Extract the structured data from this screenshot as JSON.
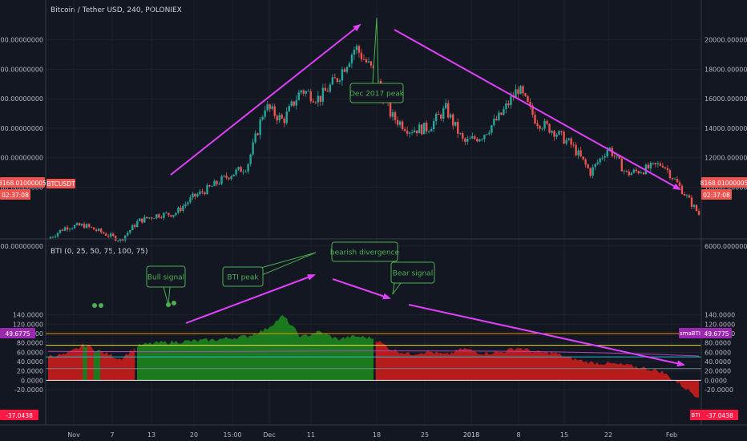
{
  "header": {
    "title": "Bitcoin / Tether USD, 240, POLONIEX"
  },
  "indicator": {
    "title": "BTI (0, 25, 50, 75, 100, 75)"
  },
  "price_axis": {
    "ticks": [
      "20000.00000000",
      "18000.00000000",
      "16000.00000000",
      "14000.00000000",
      "12000.00000000",
      "10000.00000000",
      "6000.00000000"
    ],
    "tick_values": [
      20000,
      18000,
      16000,
      14000,
      12000,
      10000,
      6000
    ],
    "last_price": "8168.01000005",
    "countdown": "02:37:08",
    "symbol_tag": "BTCUSDT"
  },
  "bti_axis": {
    "ticks": [
      "140.0000",
      "120.0000",
      "100.0000",
      "80.0000",
      "60.0000",
      "40.0000",
      "20.0000",
      "0.0000",
      "-20.0000"
    ],
    "tick_values": [
      140,
      120,
      100,
      80,
      60,
      40,
      20,
      0,
      -20
    ],
    "sma_label": "smaBTI",
    "sma_value": "49.6775",
    "bti_label": "BTI",
    "bti_value": "-37.0438"
  },
  "time_axis": [
    "Nov",
    "7",
    "13",
    "20",
    "15:00",
    "Dec",
    "11",
    "18",
    "25",
    "2018",
    "8",
    "15",
    "22",
    "Feb"
  ],
  "annotations": {
    "peak": "Dec 2017 peak",
    "bull": "Bull signal",
    "bti_peak": "BTI peak",
    "divergence": "bearish divergence",
    "bear": "Bear signal"
  },
  "colors": {
    "background": "#131722",
    "bull_fill": "#1b7a1e",
    "bear_fill": "#b71c1c",
    "up_candle": "#26a69a",
    "down_candle": "#ef5350",
    "arrow": "#e040fb",
    "callout": "#4caf50",
    "line100": "#ff9800",
    "line75": "#ffeb3b",
    "line50": "#26c6da",
    "line25": "#78909c",
    "line0": "#ffffff"
  },
  "chart_data": [
    {
      "type": "candlestick",
      "title": "Bitcoin / Tether USD, 240, POLONIEX",
      "x": [
        "Nov 1",
        "Nov 4",
        "Nov 7",
        "Nov 10",
        "Nov 13",
        "Nov 16",
        "Nov 20",
        "Nov 23",
        "Nov 26",
        "Nov 29",
        "Dec 1",
        "Dec 4",
        "Dec 7",
        "Dec 9",
        "Dec 11",
        "Dec 13",
        "Dec 15",
        "Dec 17",
        "Dec 19",
        "Dec 21",
        "Dec 23",
        "Dec 25",
        "Dec 27",
        "Dec 30",
        "Jan 1",
        "Jan 4",
        "Jan 7",
        "Jan 10",
        "Jan 13",
        "Jan 15",
        "Jan 17",
        "Jan 20",
        "Jan 23",
        "Jan 26",
        "Jan 29",
        "Feb 1",
        "Feb 2"
      ],
      "y": [
        6500,
        7300,
        7400,
        6900,
        6400,
        7700,
        8100,
        8200,
        9300,
        10000,
        10800,
        11400,
        15500,
        14500,
        16600,
        16000,
        17400,
        19500,
        17800,
        14800,
        13900,
        14000,
        15300,
        13000,
        13500,
        14800,
        16700,
        14500,
        13800,
        12800,
        11000,
        12700,
        10900,
        11200,
        11600,
        9900,
        8168
      ],
      "ylim": [
        5000,
        20600
      ],
      "ylabel": "",
      "xlabel": ""
    },
    {
      "type": "area",
      "title": "BTI (0, 25, 50, 75, 100, 75)",
      "x": [
        "Nov 1",
        "Nov 4",
        "Nov 7",
        "Nov 10",
        "Nov 13",
        "Nov 16",
        "Nov 20",
        "Nov 23",
        "Nov 26",
        "Nov 29",
        "Dec 1",
        "Dec 4",
        "Dec 7",
        "Dec 9",
        "Dec 11",
        "Dec 13",
        "Dec 15",
        "Dec 17",
        "Dec 19",
        "Dec 21",
        "Dec 23",
        "Dec 25",
        "Dec 27",
        "Dec 30",
        "Jan 1",
        "Jan 4",
        "Jan 7",
        "Jan 10",
        "Jan 13",
        "Jan 15",
        "Jan 17",
        "Jan 20",
        "Jan 23",
        "Jan 26",
        "Jan 29",
        "Feb 1",
        "Feb 2"
      ],
      "y": [
        52,
        55,
        76,
        60,
        46,
        74,
        80,
        82,
        84,
        86,
        90,
        94,
        108,
        138,
        92,
        104,
        88,
        94,
        90,
        66,
        56,
        62,
        54,
        68,
        58,
        60,
        70,
        60,
        58,
        46,
        38,
        36,
        32,
        26,
        18,
        -10,
        -37
      ],
      "ylim": [
        -30,
        145
      ],
      "levels": [
        0,
        25,
        50,
        75,
        100
      ],
      "sma_value": 49.6775,
      "last_value": -37.0438
    }
  ]
}
